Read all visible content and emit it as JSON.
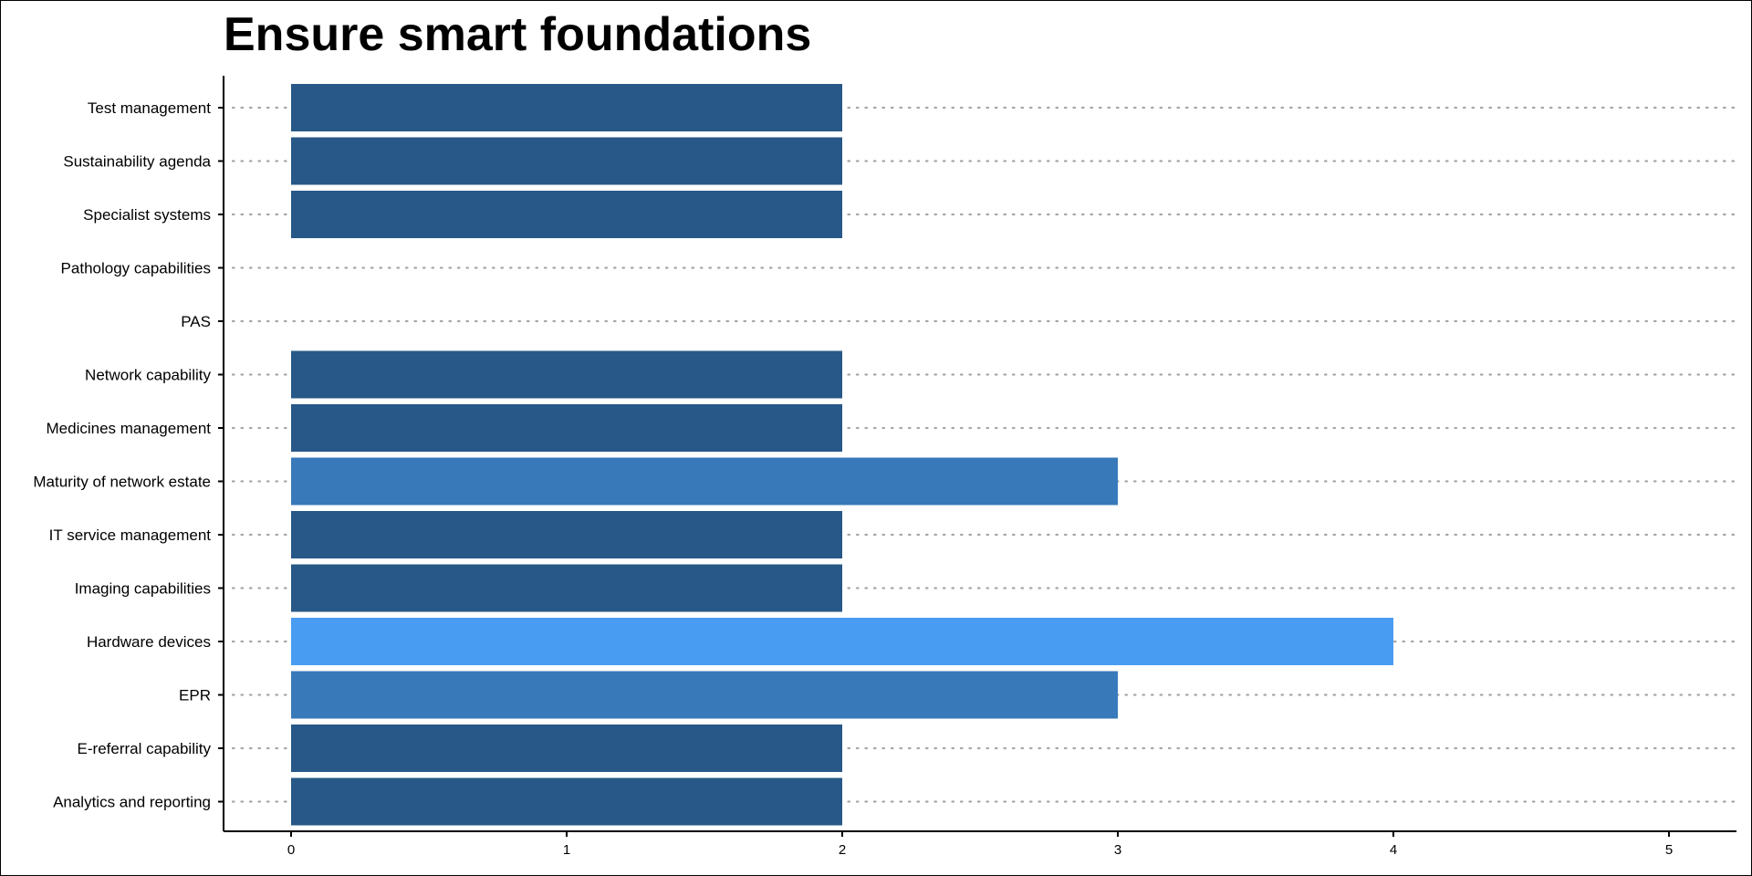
{
  "chart_data": {
    "type": "bar",
    "orientation": "horizontal",
    "title": "Ensure smart foundations",
    "xlabel": "",
    "ylabel": "",
    "categories": [
      "Test management",
      "Sustainability agenda",
      "Specialist systems",
      "Pathology capabilities",
      "PAS",
      "Network capability",
      "Medicines management",
      "Maturity of network estate",
      "IT service management",
      "Imaging capabilities",
      "Hardware devices",
      "EPR",
      "E-referral capability",
      "Analytics and reporting"
    ],
    "values": [
      2,
      2,
      2,
      0,
      0,
      2,
      2,
      3,
      2,
      2,
      4,
      3,
      2,
      2
    ],
    "xlim": [
      0,
      5.25
    ],
    "xticks": [
      0,
      1,
      2,
      3,
      4,
      5
    ],
    "grid": "horizontal dotted",
    "legend": "none",
    "colors": {
      "2": "#275887",
      "3": "#3879ba",
      "4": "#489df2"
    },
    "gridline_color": "#a6a6a6",
    "axis_color": "#000000"
  }
}
